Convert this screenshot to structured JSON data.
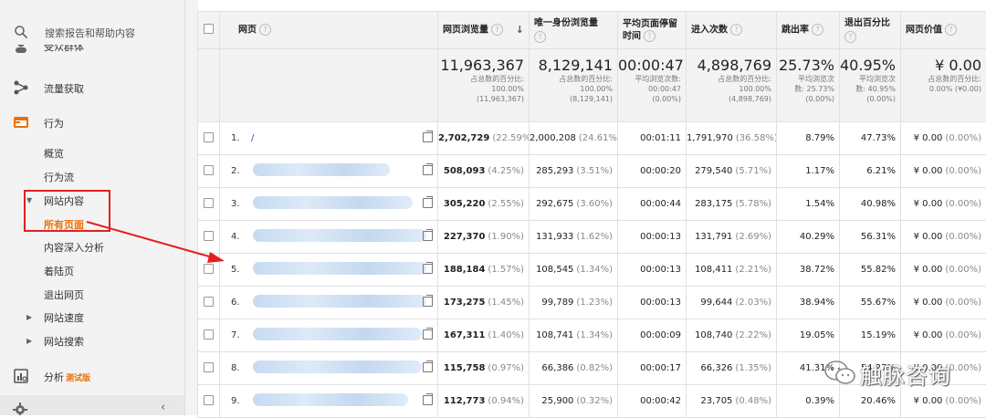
{
  "sidebar": {
    "search_placeholder": "搜索报告和帮助内容",
    "partial_item": "受众群体",
    "acquisition": "流量获取",
    "behavior": "行为",
    "behavior_items": {
      "overview": "概览",
      "flow": "行为流",
      "site_content": "网站内容",
      "all_pages": "所有页面",
      "drilldown": "内容深入分析",
      "landing": "着陆页",
      "exit": "退出网页",
      "site_speed": "网站速度",
      "site_search": "网站搜索"
    },
    "analysis": "分析",
    "analysis_badge": "测试版",
    "collapse_icon": "chevron-left-icon"
  },
  "table": {
    "headers": {
      "page": "网页",
      "pageviews": "网页浏览量",
      "unique_pageviews": "唯一身份浏览量",
      "avg_time": "平均页面停留时间",
      "entrances": "进入次数",
      "bounce_rate": "跳出率",
      "exit_pct": "退出百分比",
      "page_value": "网页价值"
    },
    "totals": {
      "pageviews": {
        "big": "11,963,367",
        "l1": "占总数的百分比:",
        "l2": "100.00%",
        "l3": "(11,963,367)"
      },
      "unique_pageviews": {
        "big": "8,129,141",
        "l1": "占总数的百分比:",
        "l2": "100.00%",
        "l3": "(8,129,141)"
      },
      "avg_time": {
        "big": "00:00:47",
        "l1": "平均浏览次数:",
        "l2": "00:00:47",
        "l3": "(0.00%)"
      },
      "entrances": {
        "big": "4,898,769",
        "l1": "占总数的百分比:",
        "l2": "100.00%",
        "l3": "(4,898,769)"
      },
      "bounce_rate": {
        "big": "25.73%",
        "l1": "平均浏览次",
        "l2": "数: 25.73%",
        "l3": "(0.00%)"
      },
      "exit_pct": {
        "big": "40.95%",
        "l1": "平均浏览次",
        "l2": "数: 40.95%",
        "l3": "(0.00%)"
      },
      "page_value": {
        "big": "¥ 0.00",
        "l1": "占总数的百分比:",
        "l2": "0.00% (¥0.00)",
        "l3": ""
      }
    },
    "rows": [
      {
        "num": "1.",
        "page": "/",
        "pv": "2,702,729",
        "pv_pct": "(22.59%)",
        "upv": "2,000,208",
        "upv_pct": "(24.61%)",
        "time": "00:01:11",
        "ent": "1,791,970",
        "ent_pct": "(36.58%)",
        "bounce": "8.79%",
        "exit": "47.73%",
        "val": "¥ 0.00",
        "val_pct": "(0.00%)"
      },
      {
        "num": "2.",
        "page": "",
        "pv": "508,093",
        "pv_pct": "(4.25%)",
        "upv": "285,293",
        "upv_pct": "(3.51%)",
        "time": "00:00:20",
        "ent": "279,540",
        "ent_pct": "(5.71%)",
        "bounce": "1.17%",
        "exit": "6.21%",
        "val": "¥ 0.00",
        "val_pct": "(0.00%)"
      },
      {
        "num": "3.",
        "page": "",
        "pv": "305,220",
        "pv_pct": "(2.55%)",
        "upv": "292,675",
        "upv_pct": "(3.60%)",
        "time": "00:00:44",
        "ent": "283,175",
        "ent_pct": "(5.78%)",
        "bounce": "1.54%",
        "exit": "40.98%",
        "val": "¥ 0.00",
        "val_pct": "(0.00%)"
      },
      {
        "num": "4.",
        "page": "",
        "pv": "227,370",
        "pv_pct": "(1.90%)",
        "upv": "131,933",
        "upv_pct": "(1.62%)",
        "time": "00:00:13",
        "ent": "131,791",
        "ent_pct": "(2.69%)",
        "bounce": "40.29%",
        "exit": "56.31%",
        "val": "¥ 0.00",
        "val_pct": "(0.00%)"
      },
      {
        "num": "5.",
        "page": "",
        "pv": "188,184",
        "pv_pct": "(1.57%)",
        "upv": "108,545",
        "upv_pct": "(1.34%)",
        "time": "00:00:13",
        "ent": "108,411",
        "ent_pct": "(2.21%)",
        "bounce": "38.72%",
        "exit": "55.82%",
        "val": "¥ 0.00",
        "val_pct": "(0.00%)"
      },
      {
        "num": "6.",
        "page": "",
        "pv": "173,275",
        "pv_pct": "(1.45%)",
        "upv": "99,789",
        "upv_pct": "(1.23%)",
        "time": "00:00:13",
        "ent": "99,644",
        "ent_pct": "(2.03%)",
        "bounce": "38.94%",
        "exit": "55.67%",
        "val": "¥ 0.00",
        "val_pct": "(0.00%)"
      },
      {
        "num": "7.",
        "page": "",
        "pv": "167,311",
        "pv_pct": "(1.40%)",
        "upv": "108,741",
        "upv_pct": "(1.34%)",
        "time": "00:00:09",
        "ent": "108,740",
        "ent_pct": "(2.22%)",
        "bounce": "19.05%",
        "exit": "15.19%",
        "val": "¥ 0.00",
        "val_pct": "(0.00%)"
      },
      {
        "num": "8.",
        "page": "",
        "pv": "115,758",
        "pv_pct": "(0.97%)",
        "upv": "66,386",
        "upv_pct": "(0.82%)",
        "time": "00:00:17",
        "ent": "66,326",
        "ent_pct": "(1.35%)",
        "bounce": "41.31%",
        "exit": "54.27%",
        "val": "¥ 0.00",
        "val_pct": "(0.00%)"
      },
      {
        "num": "9.",
        "page": "",
        "pv": "112,773",
        "pv_pct": "(0.94%)",
        "upv": "25,900",
        "upv_pct": "(0.32%)",
        "time": "00:00:42",
        "ent": "23,705",
        "ent_pct": "(0.48%)",
        "bounce": "0.39%",
        "exit": "20.46%",
        "val": "¥ 0.00",
        "val_pct": "(0.00%)"
      }
    ]
  },
  "watermark": {
    "text": "触脉咨询"
  },
  "colors": {
    "accent": "#e8710a",
    "annotation": "#e02020",
    "link": "#1a57a8"
  }
}
